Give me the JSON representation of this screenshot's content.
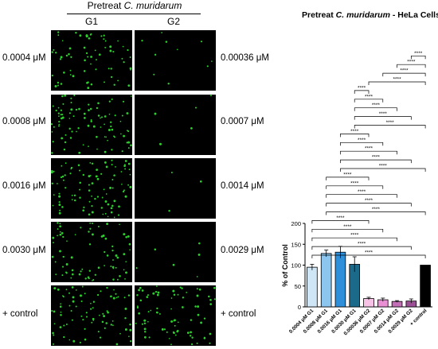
{
  "micrographs": {
    "group_title_prefix": "Pretreat ",
    "group_title_species": "C. muridarum",
    "columns": [
      "G1",
      "G2"
    ],
    "left_labels": [
      "0.0004 μM",
      "0.0008 μM",
      "0.0016 μM",
      "0.0030 μM",
      "+ control"
    ],
    "right_labels": [
      "0.00036 μM",
      "0.0007 μM",
      "0.0014 μM",
      "0.0029 μM",
      "+ control"
    ],
    "g1_spot_density": [
      0.7,
      0.95,
      1.0,
      0.8,
      0.85
    ],
    "g2_spot_density": [
      0.1,
      0.05,
      0.03,
      0.06,
      0.85
    ],
    "spot_color": "#2bd12b"
  },
  "chart_data": {
    "type": "bar",
    "title_italic": "C. muridarum",
    "title_prefix": "Pretreat ",
    "title_suffix": " - HeLa Cells",
    "ylabel": "% of Control",
    "ylim": [
      0,
      200
    ],
    "yticks": [
      0,
      50,
      100,
      150,
      200
    ],
    "categories": [
      "0.0004 μM G1",
      "0.0008 μM G1",
      "0.0016 μM G1",
      "0.0030 μM G1",
      "0.00036 μM G2",
      "0.0007 μM G2",
      "0.0014 μM G2",
      "0.0029 μM G2",
      "+ control"
    ],
    "values": [
      95,
      128,
      131,
      102,
      20,
      17,
      13,
      14,
      100
    ],
    "errors": [
      7,
      8,
      14,
      18,
      3,
      4,
      2,
      5,
      0
    ],
    "colors": [
      "#cfe6f7",
      "#8cc6ee",
      "#2f8fd8",
      "#1b6a8a",
      "#f6c3e6",
      "#e98fd3",
      "#c36fb8",
      "#9b4f95",
      "#000000"
    ],
    "significance_label": "****",
    "comparisons": [
      [
        0,
        8
      ],
      [
        0,
        7
      ],
      [
        0,
        6
      ],
      [
        0,
        5
      ],
      [
        0,
        4
      ],
      [
        1,
        8
      ],
      [
        1,
        7
      ],
      [
        1,
        6
      ],
      [
        1,
        5
      ],
      [
        1,
        4
      ],
      [
        2,
        8
      ],
      [
        2,
        7
      ],
      [
        2,
        6
      ],
      [
        2,
        5
      ],
      [
        2,
        4
      ],
      [
        3,
        8
      ],
      [
        3,
        7
      ],
      [
        3,
        6
      ],
      [
        3,
        5
      ],
      [
        3,
        4
      ],
      [
        4,
        8
      ],
      [
        5,
        8
      ],
      [
        6,
        8
      ],
      [
        7,
        8
      ]
    ]
  }
}
